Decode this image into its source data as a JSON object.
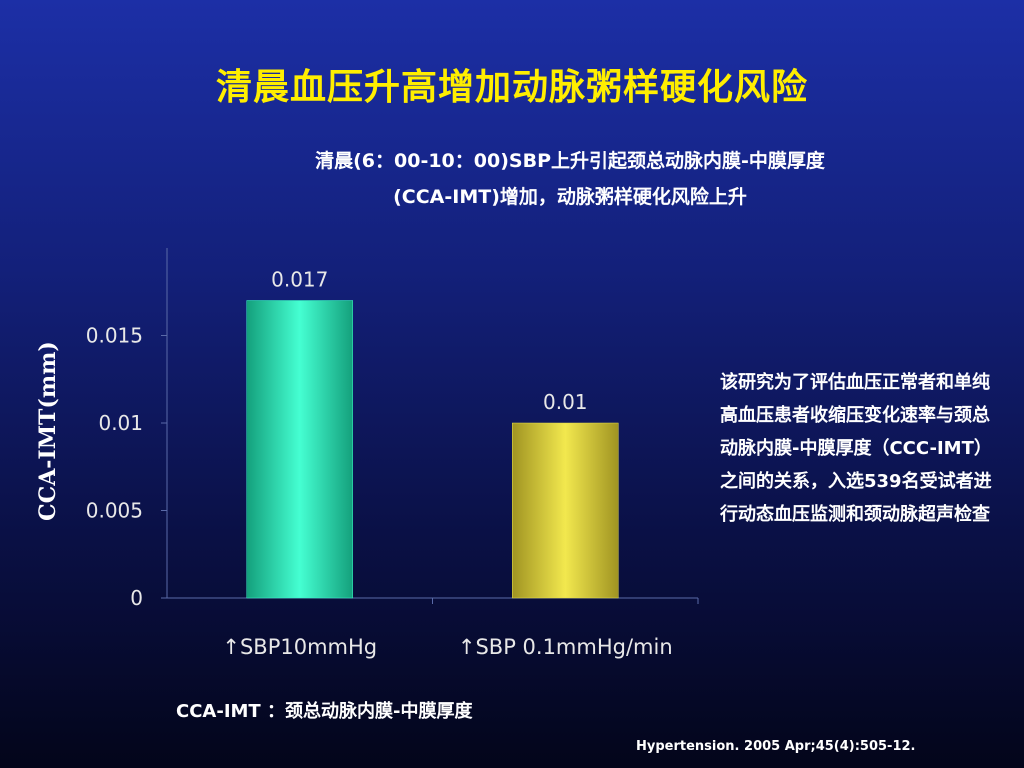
{
  "slide": {
    "title": "清晨血压升高增加动脉粥样硬化风险",
    "subtitle_line1": "清晨(6：00-10：00)SBP上升引起颈总动脉内膜-中膜厚度",
    "subtitle_line2": "(CCA-IMT)增加，动脉粥样硬化风险上升",
    "note": "该研究为了评估血压正常者和单纯高血压患者收缩压变化速率与颈总动脉内膜-中膜厚度（CCC-IMT）之间的关系，入选539名受试者进行动态血压监测和颈动脉超声检查",
    "footnote": "CCA-IMT ：颈总动脉内膜-中膜厚度",
    "citation": "Hypertension. 2005 Apr;45(4):505-12."
  },
  "chart_data": {
    "type": "bar",
    "title": "",
    "xlabel": "",
    "ylabel": "CCA-IMT(mm)",
    "categories": [
      "↑SBP10mmHg",
      "↑SBP 0.1mmHg/min"
    ],
    "values": [
      0.017,
      0.01
    ],
    "data_labels": [
      "0.017",
      "0.01"
    ],
    "ylim": [
      0,
      0.02
    ],
    "yticks": [
      0,
      0.005,
      0.01,
      0.015
    ],
    "ytick_labels": [
      "0",
      "0.005",
      "0.01",
      "0.015"
    ],
    "grid": false,
    "legend": "none",
    "colors": [
      "#3df5c8",
      "#e8df4a"
    ]
  }
}
